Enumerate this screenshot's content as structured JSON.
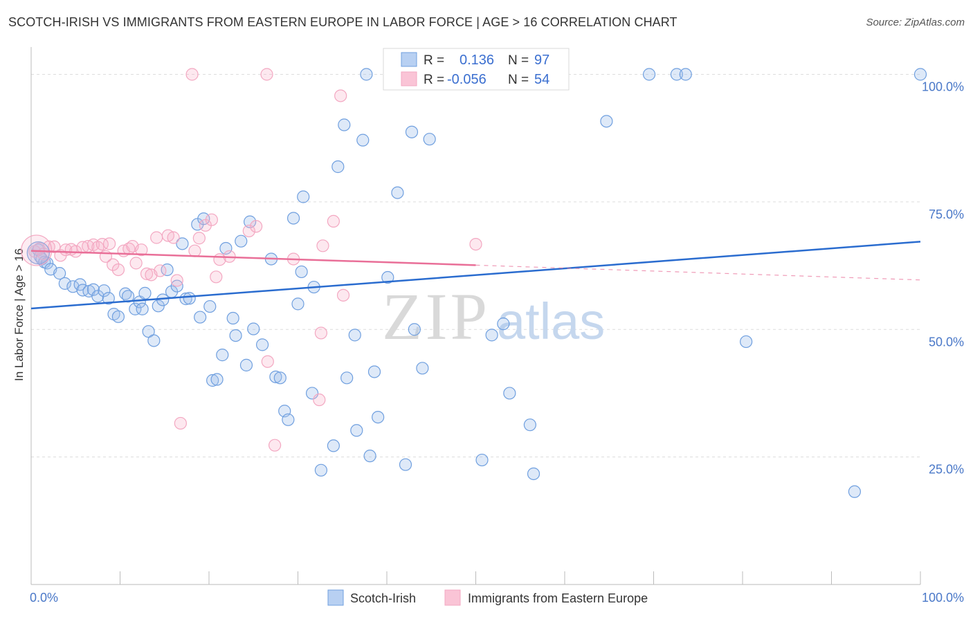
{
  "header": {
    "title": "SCOTCH-IRISH VS IMMIGRANTS FROM EASTERN EUROPE IN LABOR FORCE | AGE > 16 CORRELATION CHART",
    "source": "Source: ZipAtlas.com"
  },
  "watermark": {
    "zip": "ZIP",
    "atlas": "atlas"
  },
  "chart_data": {
    "type": "scatter",
    "title": "SCOTCH-IRISH VS IMMIGRANTS FROM EASTERN EUROPE IN LABOR FORCE | AGE > 16 CORRELATION CHART",
    "xlabel": "",
    "ylabel": "In Labor Force | Age > 16",
    "xlim": [
      0,
      100
    ],
    "ylim": [
      0,
      104
    ],
    "x_tick_labels": [
      "0.0%",
      "100.0%"
    ],
    "y_ticks": [
      25,
      50,
      75,
      100
    ],
    "y_tick_labels": [
      "25.0%",
      "50.0%",
      "75.0%",
      "100.0%"
    ],
    "grid": true,
    "legend_position": "bottom",
    "stats_box": [
      {
        "r_label": "R =",
        "r_value": "0.136",
        "n_label": "N =",
        "n_value": "97"
      },
      {
        "r_label": "R =",
        "r_value": "-0.056",
        "n_label": "N =",
        "n_value": "54"
      }
    ],
    "series": [
      {
        "name": "Scotch-Irish",
        "color": "#6f9fdf",
        "line_color": "#2a6ccf",
        "trend": {
          "x": [
            0,
            100
          ],
          "y": [
            54.1,
            67.2
          ]
        },
        "points": [
          [
            0.8,
            65.6
          ],
          [
            1,
            64.3
          ],
          [
            1.2,
            63.8
          ],
          [
            1.5,
            63.2
          ],
          [
            1.8,
            63
          ],
          [
            2.2,
            61.8
          ],
          [
            3.2,
            61
          ],
          [
            3.8,
            59
          ],
          [
            4.7,
            58.4
          ],
          [
            5.5,
            58.8
          ],
          [
            5.8,
            57.7
          ],
          [
            6.5,
            57.5
          ],
          [
            7,
            57.8
          ],
          [
            7.5,
            56.5
          ],
          [
            8.2,
            57.6
          ],
          [
            8.7,
            56.1
          ],
          [
            9.3,
            53
          ],
          [
            9.8,
            52.5
          ],
          [
            10.6,
            57
          ],
          [
            10.9,
            56.5
          ],
          [
            11.7,
            54
          ],
          [
            12.2,
            55.4
          ],
          [
            12.5,
            54
          ],
          [
            12.8,
            57.1
          ],
          [
            13.2,
            49.6
          ],
          [
            13.8,
            47.8
          ],
          [
            14.3,
            54.6
          ],
          [
            14.8,
            55.8
          ],
          [
            15.3,
            61.7
          ],
          [
            15.8,
            57.4
          ],
          [
            16.4,
            58.5
          ],
          [
            17,
            66.8
          ],
          [
            17.4,
            56
          ],
          [
            17.8,
            56.1
          ],
          [
            18.7,
            70.6
          ],
          [
            19,
            52.4
          ],
          [
            19.4,
            71.7
          ],
          [
            20.1,
            54.5
          ],
          [
            20.4,
            40
          ],
          [
            20.9,
            40.2
          ],
          [
            21.5,
            45
          ],
          [
            21.9,
            65.9
          ],
          [
            22.7,
            52.2
          ],
          [
            23,
            48.8
          ],
          [
            23.6,
            67.3
          ],
          [
            24.2,
            43
          ],
          [
            24.6,
            71.1
          ],
          [
            25,
            50.1
          ],
          [
            26,
            47
          ],
          [
            27,
            63.8
          ],
          [
            27.5,
            40.7
          ],
          [
            28,
            40.5
          ],
          [
            28.5,
            34
          ],
          [
            28.9,
            32.3
          ],
          [
            29.5,
            71.8
          ],
          [
            30,
            55
          ],
          [
            30.4,
            61.3
          ],
          [
            30.6,
            76
          ],
          [
            31.6,
            37.5
          ],
          [
            31.8,
            58.3
          ],
          [
            32.6,
            22.4
          ],
          [
            34,
            27.2
          ],
          [
            34.5,
            81.9
          ],
          [
            35.2,
            90.1
          ],
          [
            35.5,
            40.5
          ],
          [
            36.4,
            48.9
          ],
          [
            36.6,
            30.2
          ],
          [
            37.3,
            87.1
          ],
          [
            37.7,
            100
          ],
          [
            38.1,
            25.2
          ],
          [
            38.6,
            41.7
          ],
          [
            39,
            32.8
          ],
          [
            40.1,
            60.2
          ],
          [
            40.3,
            100
          ],
          [
            41.2,
            76.8
          ],
          [
            42.1,
            23.5
          ],
          [
            42.8,
            88.7
          ],
          [
            43.1,
            50
          ],
          [
            44,
            42.4
          ],
          [
            44.8,
            87.3
          ],
          [
            46.5,
            100
          ],
          [
            48.8,
            100
          ],
          [
            50.7,
            24.4
          ],
          [
            51.8,
            48.9
          ],
          [
            53.1,
            51.1
          ],
          [
            53.8,
            37.5
          ],
          [
            56.1,
            31.3
          ],
          [
            56.5,
            21.7
          ],
          [
            64.7,
            90.8
          ],
          [
            69.5,
            100
          ],
          [
            72.6,
            100
          ],
          [
            73.6,
            100
          ],
          [
            80.4,
            47.6
          ],
          [
            92.6,
            18.2
          ],
          [
            100,
            100
          ]
        ]
      },
      {
        "name": "Immigrants from Eastern Europe",
        "color": "#f3a7c1",
        "line_color": "#e96f98",
        "trend": {
          "x": [
            0,
            50
          ],
          "y": [
            65.4,
            62.6
          ]
        },
        "trend_dashed": {
          "x": [
            50,
            100
          ],
          "y": [
            62.6,
            59.7
          ]
        },
        "points": [
          [
            0.4,
            65.3
          ],
          [
            0.9,
            65.8
          ],
          [
            1.4,
            64.8
          ],
          [
            2,
            66.2
          ],
          [
            2.6,
            66.2
          ],
          [
            3.3,
            64.5
          ],
          [
            3.9,
            65.6
          ],
          [
            4.5,
            65.7
          ],
          [
            5,
            65.3
          ],
          [
            5.8,
            66.1
          ],
          [
            6.4,
            66.3
          ],
          [
            7,
            66.6
          ],
          [
            7.5,
            66.1
          ],
          [
            8,
            66.7
          ],
          [
            8.4,
            64.3
          ],
          [
            8.8,
            66.8
          ],
          [
            9.2,
            62.7
          ],
          [
            9.8,
            61.7
          ],
          [
            10.4,
            65.4
          ],
          [
            11,
            65.8
          ],
          [
            11.4,
            66.3
          ],
          [
            11.8,
            63
          ],
          [
            12.4,
            65.6
          ],
          [
            13,
            60.9
          ],
          [
            13.5,
            60.7
          ],
          [
            14.1,
            68
          ],
          [
            14.5,
            61.5
          ],
          [
            15.4,
            68.4
          ],
          [
            16,
            68
          ],
          [
            16.4,
            59.6
          ],
          [
            16.8,
            31.6
          ],
          [
            18.4,
            65.4
          ],
          [
            18.9,
            67.9
          ],
          [
            19.6,
            70.4
          ],
          [
            20.3,
            71.5
          ],
          [
            20.8,
            60.3
          ],
          [
            21.2,
            63.7
          ],
          [
            22.3,
            64.3
          ],
          [
            24.5,
            69.3
          ],
          [
            25.3,
            70.2
          ],
          [
            26.6,
            43.7
          ],
          [
            27.4,
            27.3
          ],
          [
            29.5,
            63.8
          ],
          [
            32.4,
            36.2
          ],
          [
            32.6,
            49.3
          ],
          [
            32.8,
            66.4
          ],
          [
            34,
            71.2
          ],
          [
            34.8,
            95.8
          ],
          [
            35.1,
            56.7
          ],
          [
            50,
            66.7
          ],
          [
            18.1,
            100
          ],
          [
            26.5,
            100
          ]
        ]
      }
    ]
  }
}
